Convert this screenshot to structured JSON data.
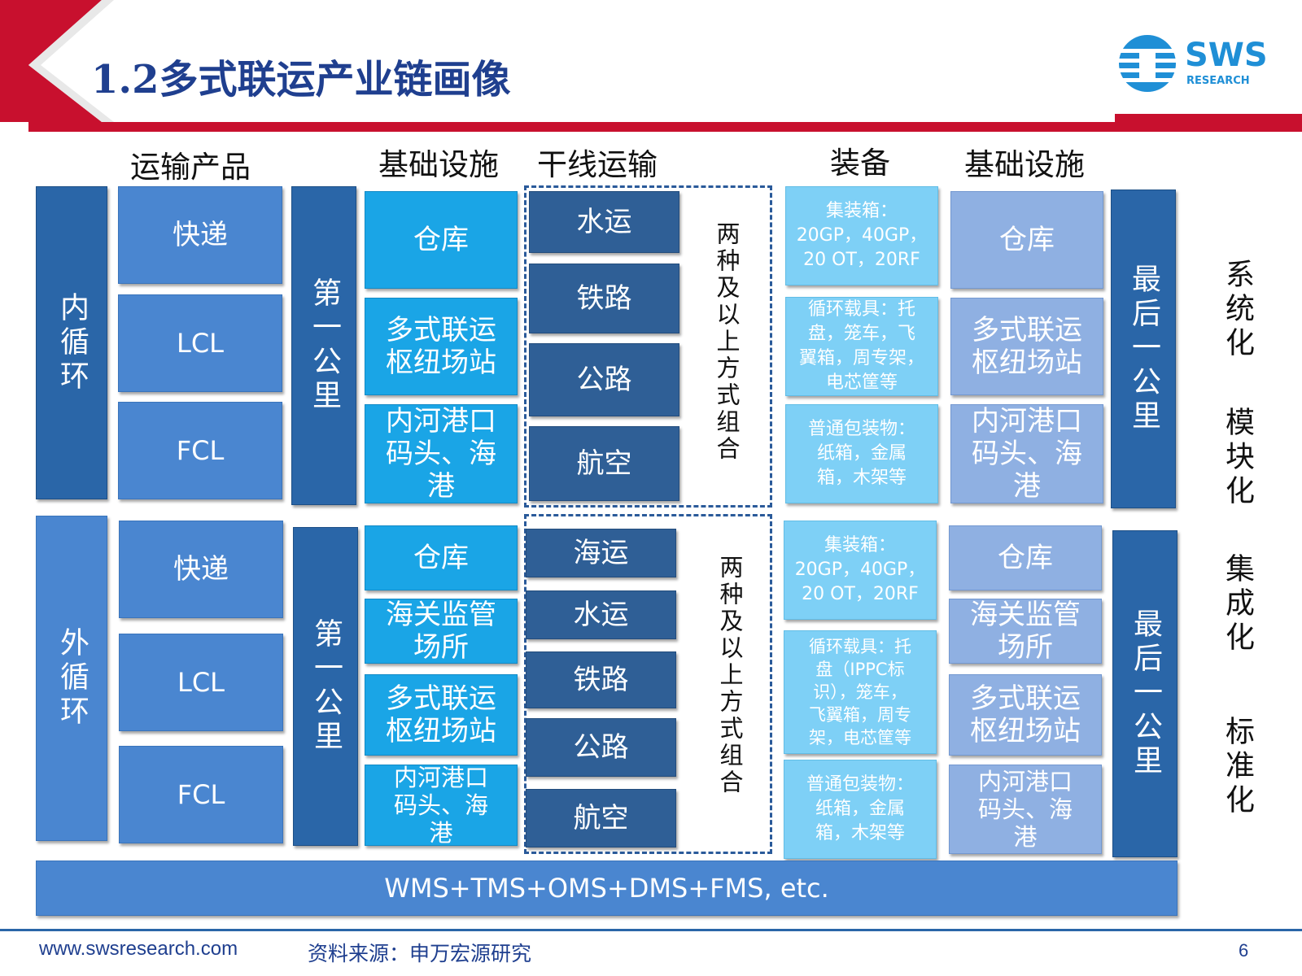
{
  "slide": {
    "title": "1.2多式联运产业链画像",
    "logo_text": "SWS",
    "logo_sub": "RESEARCH",
    "website": "www.swsresearch.com",
    "source": "资料来源：申万宏源研究",
    "page_number": "6",
    "colors": {
      "red": "#c8102e",
      "title_blue": "#1f3f8f",
      "accent_blue": "#2a66a8"
    }
  },
  "headers": [
    "运输产品",
    "基础设施",
    "干线运输",
    "装备",
    "基础设施"
  ],
  "inner": {
    "circle_label": "内循环",
    "products": [
      "快递",
      "LCL",
      "FCL"
    ],
    "first_mile": "第一公里",
    "infra": [
      "仓库",
      "多式联运\n枢纽场站",
      "内河港口\n码头、海\n港"
    ],
    "trunk": [
      "水运",
      "铁路",
      "公路",
      "航空"
    ],
    "combo": "两种及以上方式组合",
    "equipment": [
      "集装箱：\n20GP，40GP，\n20 OT，20RF",
      "循环载具：托\n盘，笼车，飞\n翼箱，周专架，\n电芯筐等",
      "普通包装物：\n纸箱，金属\n箱，木架等"
    ],
    "infra2": [
      "仓库",
      "多式联运\n枢纽场站",
      "内河港口\n码头、海\n港"
    ],
    "last_mile": "最后一公里"
  },
  "outer": {
    "circle_label": "外循环",
    "products": [
      "快递",
      "LCL",
      "FCL"
    ],
    "first_mile": "第一公里",
    "infra": [
      "仓库",
      "海关监管\n场所",
      "多式联运\n枢纽场站",
      "内河港口\n码头、海\n港"
    ],
    "trunk": [
      "海运",
      "水运",
      "铁路",
      "公路",
      "航空"
    ],
    "combo": "两种及以上方式组合",
    "equipment": [
      "集装箱：\n20GP，40GP，\n20 OT，20RF",
      "循环载具：托\n盘（IPPC标\n识），笼车，\n飞翼箱，周专\n架，电芯筐等",
      "普通包装物：\n纸箱，金属\n箱，木架等"
    ],
    "infra2": [
      "仓库",
      "海关监管\n场所",
      "多式联运\n枢纽场站",
      "内河港口\n码头、海\n港"
    ],
    "last_mile": "最后一公里"
  },
  "systems_bar": "WMS+TMS+OMS+DMS+FMS, etc.",
  "right_labels": [
    "系统化",
    "模块化",
    "集成化",
    "标准化"
  ]
}
